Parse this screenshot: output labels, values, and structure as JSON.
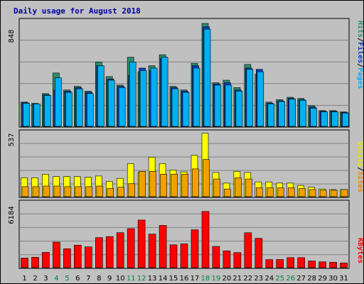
{
  "title": "Daily usage for August 2018",
  "colors": {
    "background": "#c0c0c0",
    "panel": "#c0c0c0",
    "title": "#0000a0",
    "hits": "#2e8b6e",
    "files": "#0040c0",
    "pages": "#00b0f0",
    "sites": "#f0a000",
    "visits": "#ffff00",
    "kbytes": "#ff0000",
    "weekend": "#008040",
    "weekday": "#000000"
  },
  "side_labels": {
    "top": {
      "pages": "Pages",
      "files": "Files",
      "hits": "Hits",
      "sep": "/"
    },
    "middle": {
      "sites": "Sites",
      "visits": "Visits",
      "sep": "/"
    },
    "bottom": {
      "kbytes": "KBytes"
    }
  },
  "chart_data": [
    {
      "type": "bar",
      "name": "hits-files-pages",
      "ymax_label": "848",
      "ylim": [
        0,
        848
      ],
      "categories": [
        "1",
        "2",
        "3",
        "4",
        "5",
        "6",
        "7",
        "8",
        "9",
        "10",
        "11",
        "12",
        "13",
        "14",
        "15",
        "16",
        "17",
        "18",
        "19",
        "20",
        "21",
        "22",
        "23",
        "24",
        "25",
        "26",
        "27",
        "28",
        "29",
        "30",
        "31"
      ],
      "series": [
        {
          "name": "Hits",
          "values": [
            200,
            190,
            270,
            440,
            300,
            330,
            290,
            530,
            410,
            340,
            570,
            450,
            500,
            590,
            330,
            300,
            520,
            848,
            360,
            380,
            320,
            510,
            430,
            200,
            220,
            240,
            230,
            170,
            130,
            130,
            120
          ]
        },
        {
          "name": "Files",
          "values": [
            195,
            185,
            260,
            300,
            290,
            320,
            280,
            500,
            390,
            330,
            420,
            480,
            460,
            560,
            320,
            290,
            500,
            820,
            350,
            360,
            300,
            480,
            470,
            190,
            210,
            230,
            220,
            160,
            125,
            125,
            115
          ]
        },
        {
          "name": "Pages",
          "values": [
            190,
            185,
            255,
            400,
            280,
            310,
            270,
            500,
            380,
            320,
            530,
            460,
            480,
            570,
            310,
            280,
            480,
            800,
            340,
            340,
            290,
            470,
            450,
            185,
            205,
            225,
            215,
            150,
            120,
            120,
            110
          ]
        }
      ]
    },
    {
      "type": "bar",
      "name": "visits-sites",
      "ymax_label": "537",
      "ylim": [
        0,
        537
      ],
      "categories": [
        "1",
        "2",
        "3",
        "4",
        "5",
        "6",
        "7",
        "8",
        "9",
        "10",
        "11",
        "12",
        "13",
        "14",
        "15",
        "16",
        "17",
        "18",
        "19",
        "20",
        "21",
        "22",
        "23",
        "24",
        "25",
        "26",
        "27",
        "28",
        "29",
        "30",
        "31"
      ],
      "series": [
        {
          "name": "Visits",
          "values": [
            160,
            160,
            190,
            170,
            170,
            170,
            165,
            175,
            130,
            155,
            280,
            205,
            335,
            280,
            225,
            210,
            350,
            537,
            205,
            115,
            215,
            205,
            125,
            125,
            115,
            115,
            95,
            80,
            65,
            60,
            60
          ]
        },
        {
          "name": "Sites",
          "values": [
            85,
            85,
            90,
            90,
            85,
            85,
            85,
            90,
            70,
            80,
            110,
            215,
            215,
            190,
            190,
            190,
            235,
            315,
            150,
            65,
            160,
            150,
            75,
            75,
            75,
            75,
            70,
            60,
            55,
            55,
            60
          ]
        }
      ]
    },
    {
      "type": "bar",
      "name": "kbytes",
      "ymax_label": "6184",
      "ylim": [
        0,
        6184
      ],
      "categories": [
        "1",
        "2",
        "3",
        "4",
        "5",
        "6",
        "7",
        "8",
        "9",
        "10",
        "11",
        "12",
        "13",
        "14",
        "15",
        "16",
        "17",
        "18",
        "19",
        "20",
        "21",
        "22",
        "23",
        "24",
        "25",
        "26",
        "27",
        "28",
        "29",
        "30",
        "31"
      ],
      "series": [
        {
          "name": "KBytes",
          "values": [
            930,
            1010,
            1470,
            2470,
            1830,
            2170,
            2010,
            2900,
            3000,
            3380,
            3770,
            4600,
            3240,
            4080,
            2210,
            2300,
            3660,
            5430,
            2050,
            1620,
            1460,
            3370,
            2830,
            780,
            790,
            970,
            970,
            650,
            560,
            530,
            450
          ]
        }
      ]
    }
  ],
  "weekend_days": [
    "4",
    "5",
    "11",
    "12",
    "18",
    "19",
    "25",
    "26"
  ]
}
